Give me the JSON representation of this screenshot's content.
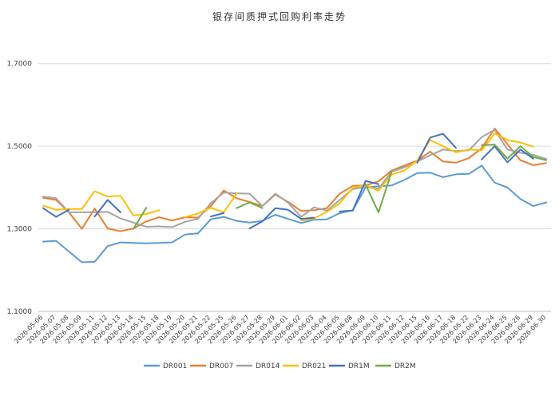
{
  "chart_data": {
    "type": "line",
    "title": "银存间质押式回购利率走势",
    "xlabel": "",
    "ylabel": "",
    "ylim": [
      1.1,
      1.8
    ],
    "yticks": [
      "1.1000",
      "1.3000",
      "1.5000",
      "1.7000"
    ],
    "grid": "horizontal",
    "legend": "bottom",
    "x": [
      "2026-05-06",
      "2026-05-07",
      "2026-05-08",
      "2026-05-09",
      "2026-05-11",
      "2026-05-12",
      "2026-05-13",
      "2026-05-14",
      "2026-05-15",
      "2026-05-18",
      "2026-05-19",
      "2026-05-20",
      "2026-05-21",
      "2026-05-22",
      "2026-05-25",
      "2026-05-26",
      "2026-05-27",
      "2026-05-28",
      "2026-05-29",
      "2026-06-01",
      "2026-06-02",
      "2026-06-03",
      "2026-06-04",
      "2026-06-05",
      "2026-06-08",
      "2026-06-09",
      "2026-06-10",
      "2026-06-11",
      "2026-06-12",
      "2026-06-15",
      "2026-06-16",
      "2026-06-17",
      "2026-06-18",
      "2026-06-22",
      "2026-06-23",
      "2026-06-24",
      "2026-06-25",
      "2026-06-26",
      "2026-06-29",
      "2026-06-30"
    ],
    "xticks": [
      "2026-05-06",
      "2026-05-07",
      "2026-05-08",
      "2026-05-09",
      "2026-05-11",
      "2026-05-12",
      "2026-05-13",
      "2026-05-14",
      "2026-05-15",
      "2026-05-18",
      "2026-05-19",
      "2026-05-20",
      "2026-05-21",
      "2026-05-22",
      "2026-05-25",
      "2026-05-26",
      "2026-05-27",
      "2026-05-28",
      "2026-05-29",
      "2026-06-01",
      "2026-06-02",
      "2026-06-03",
      "2026-06-04",
      "2026-06-05",
      "2026-06-08",
      "2026-06-09",
      "2026-06-10",
      "2026-06-11",
      "2026-06-12",
      "2026-06-15",
      "2026-06-16",
      "2026-06-17",
      "2026-06-18",
      "2026-06-22",
      "2026-06-23",
      "2026-06-24",
      "2026-06-25",
      "2026-06-26",
      "2026-06-29",
      "2026-06-30"
    ],
    "series": [
      {
        "name": "DR001",
        "color": "#5b9bd5",
        "values": [
          1.269,
          1.271,
          1.245,
          1.219,
          1.22,
          1.258,
          1.267,
          1.266,
          1.265,
          1.266,
          1.267,
          1.286,
          1.289,
          1.323,
          1.329,
          1.319,
          1.315,
          1.319,
          1.334,
          1.324,
          1.314,
          1.322,
          1.323,
          1.338,
          1.345,
          1.4,
          1.403,
          1.405,
          1.418,
          1.435,
          1.436,
          1.425,
          1.432,
          1.433,
          1.453,
          1.412,
          1.4,
          1.372,
          1.355,
          1.364
        ]
      },
      {
        "name": "DR007",
        "color": "#ed7d31",
        "values": [
          1.375,
          1.37,
          1.34,
          1.3,
          1.349,
          1.301,
          1.294,
          1.301,
          1.318,
          1.328,
          1.32,
          1.328,
          1.327,
          1.355,
          1.393,
          1.374,
          1.365,
          1.355,
          1.383,
          1.365,
          1.343,
          1.345,
          1.35,
          1.385,
          1.404,
          1.405,
          1.415,
          1.441,
          1.453,
          1.465,
          1.487,
          1.463,
          1.46,
          1.471,
          1.495,
          1.543,
          1.505,
          1.466,
          1.454,
          1.459
        ]
      },
      {
        "name": "DR014",
        "color": "#a5a5a5",
        "values": [
          1.378,
          1.374,
          1.34,
          1.34,
          1.34,
          1.341,
          1.325,
          1.315,
          1.305,
          1.306,
          1.304,
          1.317,
          1.324,
          1.362,
          1.388,
          1.386,
          1.385,
          1.355,
          1.385,
          1.363,
          1.329,
          1.352,
          1.344,
          1.37,
          1.396,
          1.401,
          1.397,
          1.438,
          1.449,
          1.463,
          1.478,
          1.492,
          1.488,
          1.49,
          1.522,
          1.54,
          1.492,
          1.484,
          1.479,
          1.469
        ]
      },
      {
        "name": "DR021",
        "color": "#ffc000",
        "values": [
          1.356,
          1.346,
          1.348,
          1.348,
          1.391,
          1.378,
          1.38,
          1.332,
          1.336,
          1.345,
          null,
          1.328,
          1.337,
          1.351,
          1.34,
          1.385,
          null,
          null,
          null,
          null,
          1.32,
          1.325,
          1.341,
          1.362,
          1.399,
          1.406,
          1.392,
          1.431,
          1.441,
          1.465,
          1.515,
          1.5,
          1.485,
          1.492,
          1.49,
          1.531,
          1.515,
          1.509,
          1.499,
          null
        ]
      },
      {
        "name": "DR1M",
        "color": "#4472c4",
        "values": [
          1.35,
          1.329,
          1.346,
          null,
          1.33,
          1.37,
          1.34,
          null,
          null,
          null,
          null,
          null,
          null,
          1.33,
          1.338,
          null,
          1.301,
          1.318,
          1.35,
          1.346,
          1.324,
          1.327,
          null,
          1.342,
          1.344,
          1.416,
          1.408,
          null,
          null,
          1.46,
          1.521,
          1.53,
          1.496,
          null,
          1.468,
          1.5,
          1.461,
          1.492,
          1.47,
          null
        ]
      },
      {
        "name": "DR2M",
        "color": "#70ad47",
        "values": [
          null,
          null,
          null,
          null,
          null,
          null,
          null,
          1.3,
          1.351,
          null,
          null,
          null,
          null,
          null,
          null,
          1.35,
          1.364,
          1.35,
          null,
          null,
          1.325,
          null,
          null,
          null,
          null,
          1.407,
          1.34,
          1.437,
          null,
          null,
          null,
          null,
          null,
          null,
          1.503,
          1.504,
          1.47,
          1.5,
          1.474,
          1.466
        ]
      }
    ]
  }
}
